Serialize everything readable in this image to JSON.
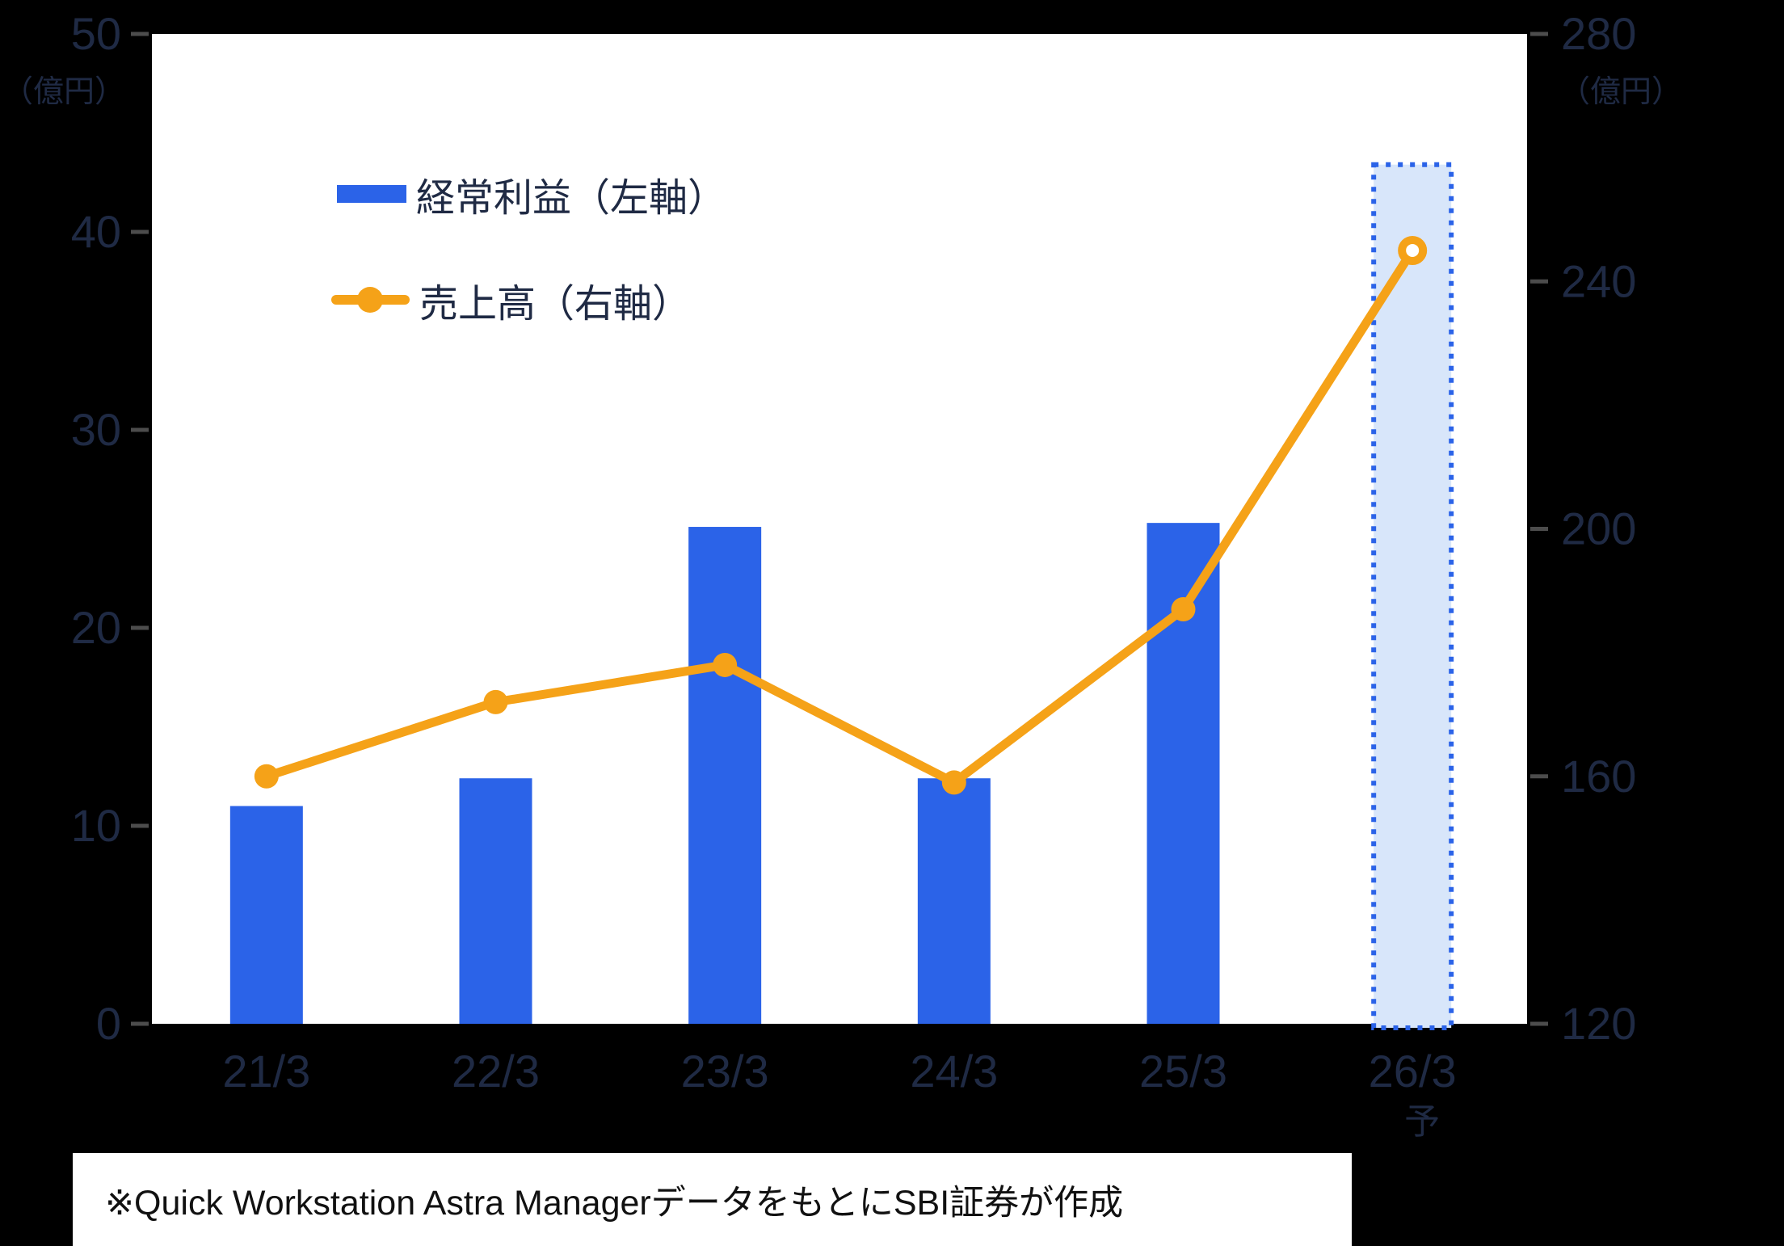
{
  "chart_data": {
    "type": "bar",
    "subtype": "dual-axis bar + line combo",
    "categories": [
      "21/3",
      "22/3",
      "23/3",
      "24/3",
      "25/3",
      "26/3"
    ],
    "last_category_suffix": "予",
    "series": [
      {
        "name": "経常利益（左軸）",
        "type": "bar",
        "axis": "left",
        "values": [
          11,
          12.4,
          25.1,
          12.4,
          25.3,
          43.4
        ],
        "forecast_index": 5
      },
      {
        "name": "売上高（右軸）",
        "type": "line",
        "axis": "right",
        "values": [
          160,
          172,
          178,
          159,
          187,
          245
        ],
        "forecast_index": 5
      }
    ],
    "left_axis": {
      "unit": "（億円）",
      "min": 0,
      "max": 50,
      "ticks": [
        50,
        40,
        30,
        20,
        10,
        0
      ]
    },
    "right_axis": {
      "unit": "（億円）",
      "min": 120,
      "max": 280,
      "ticks": [
        280,
        240,
        200,
        160,
        120
      ]
    },
    "grid": false,
    "legend_position": "upper-left inside plot",
    "colors": {
      "bar": "#2B63E8",
      "forecast_bar_fill": "#D8E6FA",
      "forecast_bar_border": "#2B63E8",
      "line": "#F5A218",
      "axis_text": "#1F2A44",
      "tick_mark": "#4C4C4C",
      "plot_bg": "#FFFFFF",
      "page_bg": "#000000"
    }
  },
  "legend": {
    "items": [
      {
        "label": "経常利益（左軸）",
        "marker": "bar-swatch"
      },
      {
        "label": "売上高（右軸）",
        "marker": "line-dot-swatch"
      }
    ]
  },
  "footer": {
    "note": "※Quick Workstation Astra ManagerデータをもとにSBI証券が作成"
  }
}
